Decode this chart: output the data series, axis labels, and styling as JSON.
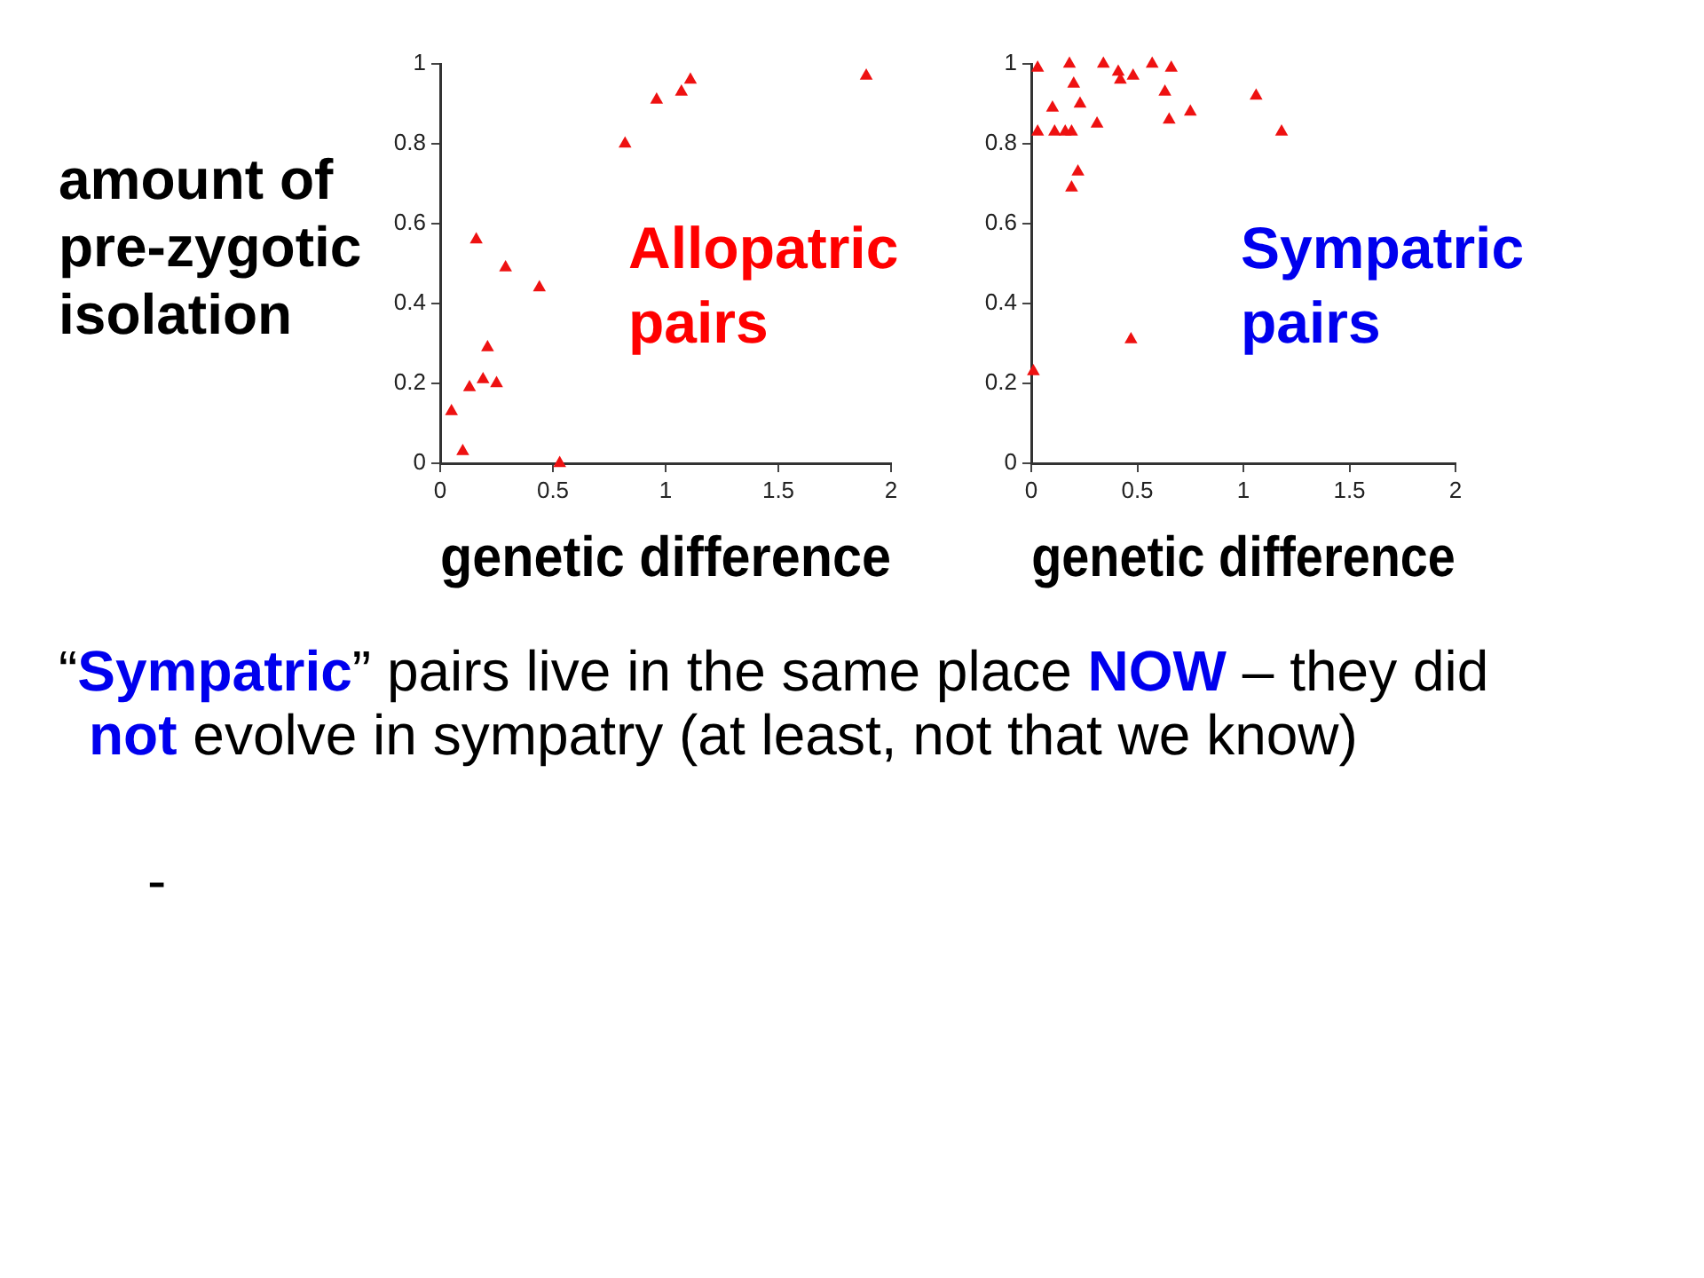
{
  "chart_data": [
    {
      "type": "scatter",
      "title": "Allopatric pairs",
      "xlabel": "genetic difference",
      "ylabel": "amount of pre-zygotic isolation",
      "color": "#ee1111",
      "marker": "triangle",
      "x": [
        0.05,
        0.1,
        0.13,
        0.16,
        0.19,
        0.21,
        0.25,
        0.29,
        0.44,
        0.53,
        0.82,
        0.96,
        1.07,
        1.11,
        1.89
      ],
      "values": [
        0.13,
        0.03,
        0.19,
        0.56,
        0.21,
        0.29,
        0.2,
        0.49,
        0.44,
        0,
        0.8,
        0.91,
        0.93,
        0.96,
        0.97
      ],
      "xlim": [
        0,
        2
      ],
      "ylim": [
        0,
        1
      ],
      "xticks": [
        0,
        0.5,
        1,
        1.5,
        2
      ],
      "yticks": [
        0,
        0.2,
        0.4,
        0.6,
        0.8,
        1
      ],
      "annotations": [
        "“Sympatric” pairs live in the same place NOW – they did not evolve in sympatry (at least, not that we know)",
        "-"
      ]
    },
    {
      "type": "scatter",
      "title": "Sympatric pairs",
      "xlabel": "genetic difference",
      "color": "#ee1111",
      "marker": "triangle",
      "x": [
        0.03,
        0.03,
        0.01,
        0.1,
        0.11,
        0.16,
        0.18,
        0.19,
        0.2,
        0.22,
        0.19,
        0.23,
        0.31,
        0.34,
        0.41,
        0.42,
        0.48,
        0.47,
        0.57,
        0.63,
        0.66,
        0.65,
        0.75,
        1.06,
        1.18
      ],
      "values": [
        0.99,
        0.83,
        0.23,
        0.89,
        0.83,
        0.83,
        1,
        0.83,
        0.95,
        0.73,
        0.69,
        0.9,
        0.85,
        1,
        0.98,
        0.96,
        0.97,
        0.31,
        1,
        0.93,
        0.99,
        0.86,
        0.88,
        0.92,
        0.83
      ],
      "xlim": [
        0,
        2
      ],
      "ylim": [
        0,
        1
      ],
      "xticks": [
        0,
        0.5,
        1,
        1.5,
        2
      ],
      "yticks": [
        0,
        0.2,
        0.4,
        0.6,
        0.8,
        1
      ]
    }
  ]
}
